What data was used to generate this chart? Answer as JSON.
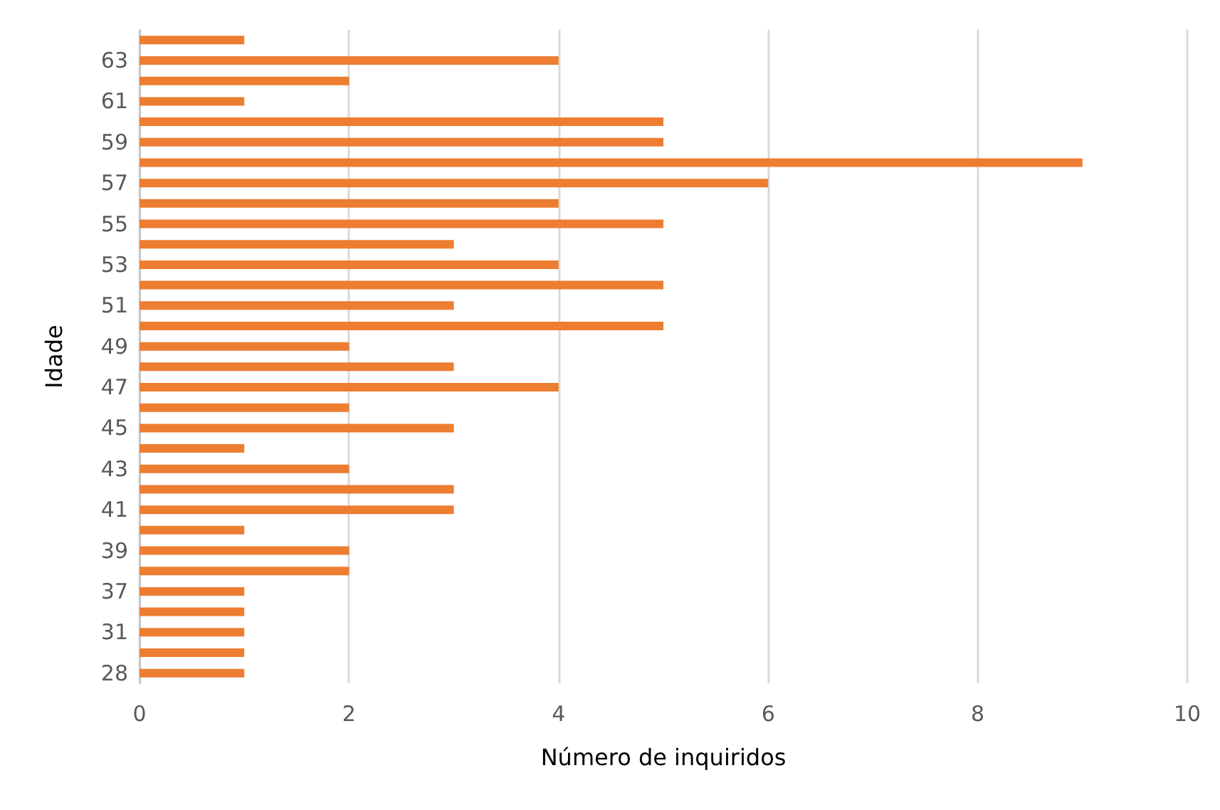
{
  "chart_data": {
    "type": "bar",
    "orientation": "horizontal",
    "xlabel": "Número de inquiridos",
    "ylabel": "Idade",
    "categories": [
      null,
      "63",
      null,
      "61",
      null,
      "59",
      null,
      "57",
      null,
      "55",
      null,
      "53",
      null,
      "51",
      null,
      "49",
      null,
      "47",
      null,
      "45",
      null,
      "43",
      null,
      "41",
      null,
      "39",
      null,
      "37",
      null,
      "31",
      null,
      "28"
    ],
    "values": [
      1,
      4,
      2,
      1,
      5,
      5,
      9,
      6,
      4,
      5,
      3,
      4,
      5,
      3,
      5,
      2,
      3,
      4,
      2,
      3,
      1,
      2,
      3,
      3,
      1,
      2,
      2,
      1,
      1,
      1,
      1,
      1
    ],
    "color": "#ed7d31",
    "xlim": [
      0,
      10
    ],
    "xticks": [
      0,
      2,
      4,
      6,
      8,
      10
    ],
    "grid": "x"
  }
}
